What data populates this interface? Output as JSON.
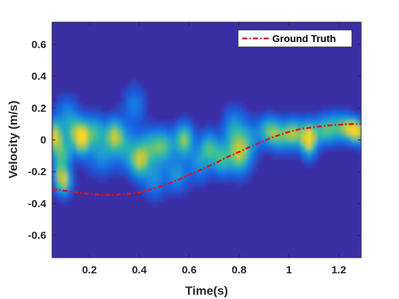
{
  "chart_data": {
    "type": "heatmap",
    "title": "",
    "xlabel": "Time(s)",
    "ylabel": "Velocity (m/s)",
    "xlim": [
      0.05,
      1.29
    ],
    "ylim": [
      -0.74,
      0.74
    ],
    "x_ticks": [
      0.2,
      0.4,
      0.6,
      0.8,
      1,
      1.2
    ],
    "x_tick_labels": [
      "0.2",
      "0.4",
      "0.6",
      "0.8",
      "1",
      "1.2"
    ],
    "y_ticks": [
      0.6,
      0.4,
      0.2,
      0,
      -0.2,
      -0.4,
      -0.6
    ],
    "y_tick_labels": [
      "0.6",
      "0.4",
      "0.2",
      "0",
      "-0.2",
      "-0.4",
      "-0.6"
    ],
    "grid": false,
    "colormap": "parula",
    "background_color": "#3b2fa6",
    "legend": {
      "position": "top-right",
      "entries": [
        "Ground Truth"
      ]
    },
    "series": [
      {
        "name": "Ground Truth",
        "type": "line",
        "style": "dash-dot",
        "color": "#e0141e",
        "x": [
          0.05,
          0.1,
          0.15,
          0.2,
          0.25,
          0.3,
          0.35,
          0.4,
          0.45,
          0.5,
          0.55,
          0.6,
          0.65,
          0.7,
          0.75,
          0.8,
          0.85,
          0.9,
          0.95,
          1.0,
          1.05,
          1.1,
          1.15,
          1.2,
          1.25,
          1.29
        ],
        "y": [
          -0.31,
          -0.32,
          -0.33,
          -0.34,
          -0.345,
          -0.345,
          -0.34,
          -0.33,
          -0.31,
          -0.285,
          -0.255,
          -0.22,
          -0.185,
          -0.15,
          -0.11,
          -0.075,
          -0.04,
          -0.005,
          0.025,
          0.05,
          0.07,
          0.08,
          0.09,
          0.095,
          0.1,
          0.1
        ]
      }
    ],
    "heatmap_blobs": [
      {
        "x": 0.06,
        "y": 0.02,
        "sx": 0.02,
        "sy": 0.07,
        "v": 0.9
      },
      {
        "x": 0.08,
        "y": -0.2,
        "sx": 0.02,
        "sy": 0.08,
        "v": 0.45
      },
      {
        "x": 0.1,
        "y": -0.26,
        "sx": 0.02,
        "sy": 0.06,
        "v": 0.65
      },
      {
        "x": 0.1,
        "y": -0.08,
        "sx": 0.025,
        "sy": 0.06,
        "v": 0.45
      },
      {
        "x": 0.11,
        "y": 0.16,
        "sx": 0.03,
        "sy": 0.08,
        "v": 0.3
      },
      {
        "x": 0.14,
        "y": 0.05,
        "sx": 0.03,
        "sy": 0.07,
        "v": 0.5
      },
      {
        "x": 0.17,
        "y": 0.0,
        "sx": 0.02,
        "sy": 0.07,
        "v": 0.7
      },
      {
        "x": 0.22,
        "y": 0.05,
        "sx": 0.03,
        "sy": 0.07,
        "v": 0.55
      },
      {
        "x": 0.25,
        "y": -0.1,
        "sx": 0.04,
        "sy": 0.08,
        "v": 0.35
      },
      {
        "x": 0.3,
        "y": 0.03,
        "sx": 0.025,
        "sy": 0.07,
        "v": 0.75
      },
      {
        "x": 0.35,
        "y": -0.05,
        "sx": 0.03,
        "sy": 0.09,
        "v": 0.4
      },
      {
        "x": 0.38,
        "y": 0.22,
        "sx": 0.03,
        "sy": 0.08,
        "v": 0.3
      },
      {
        "x": 0.4,
        "y": -0.14,
        "sx": 0.025,
        "sy": 0.07,
        "v": 0.65
      },
      {
        "x": 0.44,
        "y": -0.05,
        "sx": 0.035,
        "sy": 0.08,
        "v": 0.5
      },
      {
        "x": 0.46,
        "y": -0.25,
        "sx": 0.03,
        "sy": 0.08,
        "v": 0.35
      },
      {
        "x": 0.5,
        "y": -0.04,
        "sx": 0.03,
        "sy": 0.07,
        "v": 0.55
      },
      {
        "x": 0.55,
        "y": -0.22,
        "sx": 0.03,
        "sy": 0.07,
        "v": 0.4
      },
      {
        "x": 0.58,
        "y": 0.0,
        "sx": 0.025,
        "sy": 0.07,
        "v": 0.75
      },
      {
        "x": 0.64,
        "y": -0.15,
        "sx": 0.03,
        "sy": 0.08,
        "v": 0.35
      },
      {
        "x": 0.68,
        "y": -0.05,
        "sx": 0.025,
        "sy": 0.07,
        "v": 0.55
      },
      {
        "x": 0.73,
        "y": -0.12,
        "sx": 0.025,
        "sy": 0.07,
        "v": 0.55
      },
      {
        "x": 0.78,
        "y": 0.06,
        "sx": 0.03,
        "sy": 0.09,
        "v": 0.45
      },
      {
        "x": 0.8,
        "y": -0.1,
        "sx": 0.03,
        "sy": 0.08,
        "v": 0.7
      },
      {
        "x": 0.84,
        "y": 0.0,
        "sx": 0.03,
        "sy": 0.08,
        "v": 0.35
      },
      {
        "x": 0.92,
        "y": 0.06,
        "sx": 0.03,
        "sy": 0.06,
        "v": 0.55
      },
      {
        "x": 0.96,
        "y": 0.02,
        "sx": 0.03,
        "sy": 0.06,
        "v": 0.45
      },
      {
        "x": 1.02,
        "y": 0.04,
        "sx": 0.03,
        "sy": 0.06,
        "v": 0.75
      },
      {
        "x": 1.08,
        "y": 0.0,
        "sx": 0.02,
        "sy": 0.07,
        "v": 1.0
      },
      {
        "x": 1.14,
        "y": 0.06,
        "sx": 0.03,
        "sy": 0.06,
        "v": 0.6
      },
      {
        "x": 1.2,
        "y": 0.08,
        "sx": 0.03,
        "sy": 0.06,
        "v": 0.5
      },
      {
        "x": 1.25,
        "y": 0.07,
        "sx": 0.025,
        "sy": 0.05,
        "v": 0.75
      },
      {
        "x": 1.28,
        "y": 0.04,
        "sx": 0.02,
        "sy": 0.05,
        "v": 0.6
      }
    ]
  }
}
